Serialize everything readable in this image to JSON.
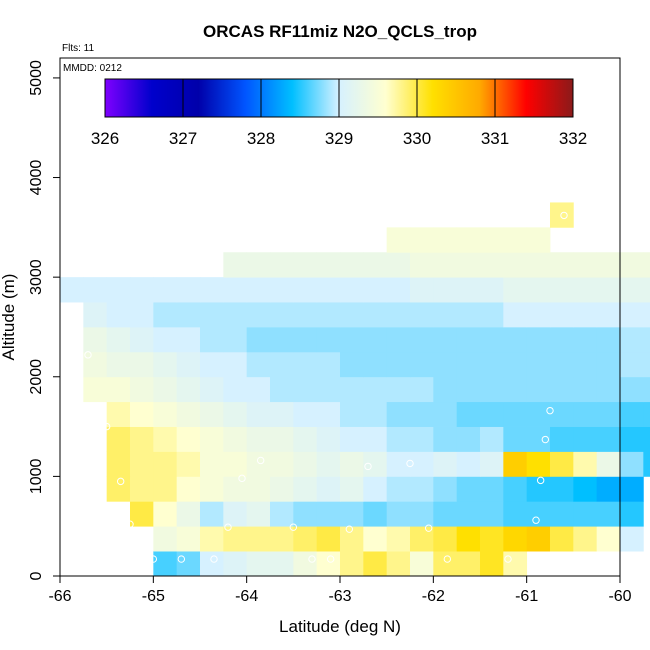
{
  "chart_data": {
    "type": "heatmap",
    "title": "ORCAS RF11miz N2O_QCLS_trop",
    "annotations": {
      "flights": "Flts: 11",
      "date": "MMDD: 0212"
    },
    "xlabel": "Latitude (deg N)",
    "ylabel": "Altitude (m)",
    "xlim": [
      -66,
      -60
    ],
    "ylim": [
      0,
      5200
    ],
    "xticks": [
      "-66",
      "-65",
      "-64",
      "-63",
      "-62",
      "-61",
      "-60"
    ],
    "yticks": [
      "0",
      "1000",
      "2000",
      "3000",
      "4000",
      "5000"
    ],
    "colorbar": {
      "range": [
        326,
        332
      ],
      "labels": [
        "326",
        "327",
        "328",
        "329",
        "330",
        "331",
        "332"
      ],
      "colors": [
        "#7f00ff",
        "#0000cc",
        "#0000aa",
        "#0055ff",
        "#00bfff",
        "#d6f1ff",
        "#ffffd0",
        "#ffe000",
        "#ffaa00",
        "#ff0000",
        "#8b1a1a"
      ]
    },
    "cell": {
      "dx": 0.25,
      "dy": 250
    },
    "rows": [
      {
        "alt": 125,
        "x0": -65.0,
        "values": [
          328.6,
          328.7,
          329.0,
          329.1,
          329.2,
          329.2,
          329.4,
          329.6,
          329.8,
          330.0,
          329.8,
          329.5,
          329.9,
          329.9,
          330.1,
          329.7
        ]
      },
      {
        "alt": 375,
        "x0": -65.0,
        "values": [
          329.4,
          329.5,
          329.7,
          329.8,
          329.8,
          329.8,
          329.9,
          330.0,
          329.8,
          329.6,
          329.7,
          329.9,
          330.0,
          330.2,
          330.1,
          330.3,
          330.4,
          330.0,
          329.8,
          329.6,
          329.0
        ]
      },
      {
        "alt": 625,
        "x0": -65.25,
        "values": [
          330.0,
          329.6,
          329.3,
          328.9,
          329.1,
          329.2,
          328.9,
          328.8,
          328.8,
          328.8,
          328.7,
          328.8,
          328.8,
          328.7,
          328.7,
          328.7,
          328.6,
          328.6,
          328.6,
          328.6,
          328.6,
          328.5
        ]
      },
      {
        "alt": 875,
        "x0": -65.5,
        "values": [
          329.9,
          329.8,
          329.8,
          329.6,
          329.5,
          329.4,
          329.4,
          329.3,
          329.2,
          329.1,
          329.2,
          329.0,
          328.9,
          328.9,
          328.8,
          328.7,
          328.7,
          328.6,
          328.5,
          328.5,
          328.4,
          328.3,
          328.3
        ]
      },
      {
        "alt": 1125,
        "x0": -65.5,
        "values": [
          329.9,
          329.8,
          329.8,
          329.7,
          329.5,
          329.5,
          329.4,
          329.4,
          329.3,
          329.2,
          329.3,
          329.2,
          329.0,
          329.0,
          329.1,
          329.0,
          329.1,
          330.4,
          330.2,
          330.0,
          329.7,
          329.3,
          328.8,
          328.5
        ]
      },
      {
        "alt": 1375,
        "x0": -65.5,
        "values": [
          329.9,
          329.8,
          329.7,
          329.6,
          329.5,
          329.4,
          329.3,
          329.3,
          329.2,
          329.1,
          329.0,
          329.0,
          328.9,
          328.9,
          328.8,
          328.8,
          328.9,
          328.7,
          328.7,
          328.6,
          328.6,
          328.6,
          328.5,
          328.5
        ]
      },
      {
        "alt": 1625,
        "x0": -65.5,
        "values": [
          329.7,
          329.6,
          329.5,
          329.4,
          329.3,
          329.2,
          329.1,
          329.1,
          329.0,
          329.0,
          328.9,
          328.9,
          328.8,
          328.8,
          328.8,
          328.7,
          328.7,
          328.7,
          328.7,
          328.7,
          328.7,
          328.7,
          328.6,
          328.6
        ]
      },
      {
        "alt": 1875,
        "x0": -65.75,
        "values": [
          329.5,
          329.5,
          329.4,
          329.3,
          329.2,
          329.1,
          329.0,
          329.0,
          328.9,
          328.9,
          328.9,
          328.9,
          328.9,
          328.9,
          328.9,
          328.8,
          328.8,
          328.8,
          328.8,
          328.8,
          328.8,
          328.8,
          328.8,
          328.8,
          328.8
        ]
      },
      {
        "alt": 2125,
        "x0": -65.75,
        "values": [
          329.4,
          329.3,
          329.3,
          329.2,
          329.1,
          329.0,
          329.0,
          328.9,
          328.9,
          328.9,
          328.9,
          328.8,
          328.8,
          328.8,
          328.8,
          328.8,
          328.8,
          328.8,
          328.8,
          328.8,
          328.8,
          328.8,
          328.8,
          328.9,
          328.9
        ]
      },
      {
        "alt": 2375,
        "x0": -65.75,
        "values": [
          329.3,
          329.2,
          329.1,
          329.0,
          329.0,
          328.9,
          328.9,
          328.8,
          328.8,
          328.8,
          328.8,
          328.8,
          328.8,
          328.8,
          328.8,
          328.8,
          328.8,
          328.8,
          328.8,
          328.8,
          328.8,
          328.8,
          328.8,
          328.9,
          328.9
        ]
      },
      {
        "alt": 2625,
        "x0": -65.75,
        "values": [
          329.1,
          329.0,
          329.0,
          328.9,
          328.9,
          328.9,
          328.9,
          328.9,
          328.9,
          328.9,
          328.9,
          328.9,
          328.9,
          328.9,
          328.9,
          328.9,
          328.9,
          328.9,
          329.0,
          329.0,
          329.0,
          329.0,
          329.0,
          329.0,
          329.0
        ]
      },
      {
        "alt": 2875,
        "x0": -66.0,
        "values": [
          329.0,
          329.0,
          329.0,
          329.0,
          329.0,
          329.0,
          329.0,
          329.0,
          329.0,
          329.0,
          329.0,
          329.0,
          329.0,
          329.0,
          329.0,
          329.1,
          329.1,
          329.1,
          329.1,
          329.2,
          329.2,
          329.2,
          329.2,
          329.2,
          329.2,
          329.2
        ]
      },
      {
        "alt": 3125,
        "x0": -64.25,
        "values": [
          329.3,
          329.3,
          329.3,
          329.3,
          329.3,
          329.3,
          329.3,
          329.3,
          329.4,
          329.4,
          329.4,
          329.4,
          329.4,
          329.4,
          329.4,
          329.4,
          329.4,
          329.4,
          329.4
        ]
      },
      {
        "alt": 3375,
        "x0": -62.5,
        "values": [
          329.5,
          329.5,
          329.5,
          329.5,
          329.5,
          329.5,
          329.5
        ]
      },
      {
        "alt": 3625,
        "x0": -60.75,
        "values": [
          329.8
        ]
      }
    ],
    "points": [
      [
        -65.0,
        170
      ],
      [
        -64.7,
        170
      ],
      [
        -64.35,
        170
      ],
      [
        -63.3,
        170
      ],
      [
        -63.1,
        170
      ],
      [
        -61.85,
        170
      ],
      [
        -61.2,
        170
      ],
      [
        -65.25,
        520
      ],
      [
        -64.2,
        490
      ],
      [
        -63.5,
        490
      ],
      [
        -62.9,
        470
      ],
      [
        -62.05,
        480
      ],
      [
        -60.9,
        560
      ],
      [
        -65.35,
        950
      ],
      [
        -64.05,
        980
      ],
      [
        -60.85,
        960
      ],
      [
        -63.85,
        1160
      ],
      [
        -62.7,
        1100
      ],
      [
        -62.25,
        1130
      ],
      [
        -65.5,
        1500
      ],
      [
        -60.8,
        1370
      ],
      [
        -60.75,
        1660
      ],
      [
        -65.7,
        2220
      ],
      [
        -60.6,
        3620
      ]
    ]
  }
}
